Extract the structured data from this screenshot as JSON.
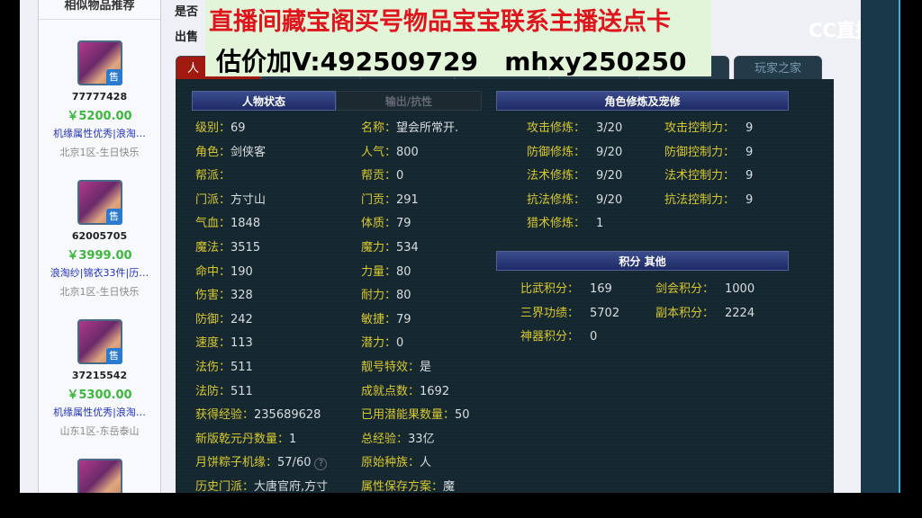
{
  "sidebar": {
    "title": "相似物品推荐",
    "items": [
      {
        "id": "77777428",
        "price": "￥5200.00",
        "tags": "机缘属性优秀|浪淘…",
        "server": "北京1区-生日快乐"
      },
      {
        "id": "62005705",
        "price": "￥3999.00",
        "tags": "浪淘纱|锦衣33件|历…",
        "server": "北京1区-生日快乐"
      },
      {
        "id": "37215542",
        "price": "￥5300.00",
        "tags": "机缘属性优秀|浪淘…",
        "server": "山东1区-东岳泰山"
      },
      {
        "id": "",
        "price": "",
        "tags": "",
        "server": ""
      }
    ],
    "sale_badge": "售"
  },
  "top": {
    "line1": "是否",
    "line2": "出售"
  },
  "overlay": {
    "line1": "直播间藏宝阁买号物品宝宝联系主播送点卡",
    "line2": "估价加V:492509729   mhxy250250"
  },
  "logo": "CC直播",
  "tabs": [
    "人",
    "玩家之家"
  ],
  "subtabs": {
    "active": "人物状态",
    "other": "输出/抗性"
  },
  "stats_left": [
    [
      "级别：",
      "69"
    ],
    [
      "角色：",
      "剑侠客"
    ],
    [
      "帮派：",
      ""
    ],
    [
      "门派：",
      "方寸山"
    ],
    [
      "气血：",
      "1848"
    ],
    [
      "魔法：",
      "3515"
    ],
    [
      "命中：",
      "190"
    ],
    [
      "伤害：",
      "328"
    ],
    [
      "防御：",
      "242"
    ],
    [
      "速度：",
      "113"
    ],
    [
      "法伤：",
      "511"
    ],
    [
      "法防：",
      "511"
    ],
    [
      "获得经验：",
      "235689628"
    ],
    [
      "新版乾元丹数量：",
      "1"
    ],
    [
      "月饼粽子机缘：",
      "57/60"
    ],
    [
      "历史门派：",
      "大唐官府,方寸"
    ]
  ],
  "stats_right": [
    [
      "名称：",
      "望会所常开."
    ],
    [
      "人气：",
      "800"
    ],
    [
      "帮贡：",
      "0"
    ],
    [
      "门贡：",
      "291"
    ],
    [
      "体质：",
      "79"
    ],
    [
      "魔力：",
      "534"
    ],
    [
      "力量：",
      "80"
    ],
    [
      "耐力：",
      "80"
    ],
    [
      "敏捷：",
      "79"
    ],
    [
      "潜力：",
      "0"
    ],
    [
      "靓号特效：",
      "是"
    ],
    [
      "成就点数：",
      "1692"
    ],
    [
      "已用潜能果数量：",
      "50"
    ],
    [
      "总经验：",
      "33亿"
    ],
    [
      "原始种族：",
      "人"
    ],
    [
      "属性保存方案：",
      "魔"
    ]
  ],
  "help_icon": "?",
  "cultivation": {
    "title": "角色修炼及宠修",
    "rows": [
      [
        "攻击修炼：",
        "3/20",
        "攻击控制力：",
        "9"
      ],
      [
        "防御修炼：",
        "9/20",
        "防御控制力：",
        "9"
      ],
      [
        "法术修炼：",
        "9/20",
        "法术控制力：",
        "9"
      ],
      [
        "抗法修炼：",
        "9/20",
        "抗法控制力：",
        "9"
      ],
      [
        "猎术修炼：",
        "1",
        "",
        ""
      ]
    ]
  },
  "points": {
    "title": "积分 其他",
    "rows": [
      [
        "比武积分：",
        "169",
        "剑会积分：",
        "1000"
      ],
      [
        "三界功绩：",
        "5702",
        "副本积分：",
        "2224"
      ],
      [
        "神器积分：",
        "0",
        "",
        ""
      ]
    ]
  }
}
